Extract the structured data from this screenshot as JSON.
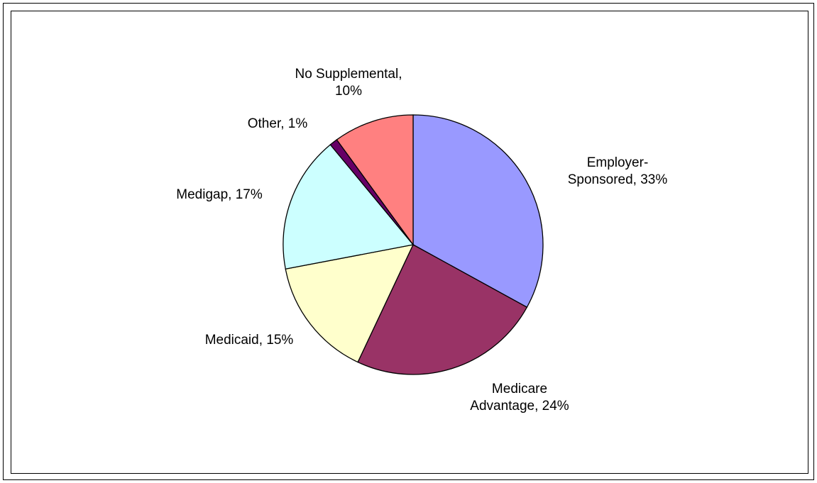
{
  "chart_data": {
    "type": "pie",
    "title": "",
    "slices": [
      {
        "label_lines": [
          "Employer-",
          "Sponsored, 33%"
        ],
        "value": 33,
        "color": "#9999ff"
      },
      {
        "label_lines": [
          "Medicare",
          "Advantage, 24%"
        ],
        "value": 24,
        "color": "#993366"
      },
      {
        "label_lines": [
          "Medicaid, 15%"
        ],
        "value": 15,
        "color": "#ffffcc"
      },
      {
        "label_lines": [
          "Medigap, 17%"
        ],
        "value": 17,
        "color": "#ccffff"
      },
      {
        "label_lines": [
          "Other, 1%"
        ],
        "value": 1,
        "color": "#660066"
      },
      {
        "label_lines": [
          "No Supplemental,",
          "10%"
        ],
        "value": 10,
        "color": "#ff8080"
      }
    ],
    "start": "12 o'clock",
    "direction": "clockwise",
    "legend": "none"
  }
}
